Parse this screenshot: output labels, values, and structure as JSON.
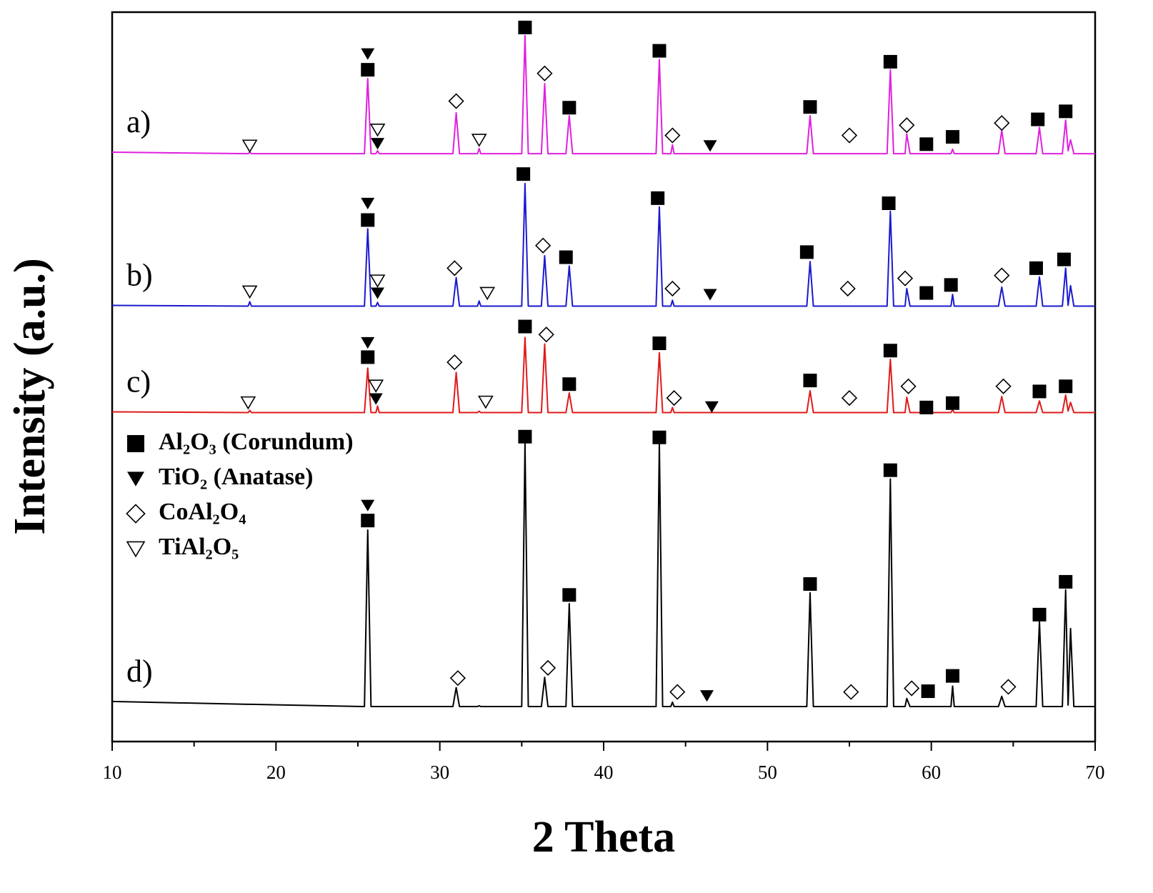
{
  "chart_data": {
    "type": "line",
    "x_label": "2 Theta",
    "y_label": "Intensity (a.u.)",
    "xlim": [
      10,
      70
    ],
    "xticks": [
      10,
      20,
      30,
      40,
      50,
      60,
      70
    ],
    "xminorticks": [
      15,
      25,
      35,
      45,
      55,
      65
    ],
    "ylim": [
      0,
      100
    ],
    "x": [
      10,
      18.3,
      18.4,
      18.5,
      25.4,
      25.6,
      25.8,
      26.1,
      26.2,
      26.3,
      30.8,
      31.0,
      31.2,
      32.3,
      32.4,
      32.5,
      35.0,
      35.2,
      35.4,
      36.2,
      36.4,
      36.6,
      37.7,
      37.9,
      38.1,
      43.2,
      43.4,
      43.6,
      44.1,
      44.2,
      44.3,
      52.4,
      52.6,
      52.8,
      57.3,
      57.5,
      57.7,
      58.4,
      58.5,
      58.7,
      61.2,
      61.3,
      61.4,
      64.1,
      64.3,
      64.5,
      66.4,
      66.6,
      66.8,
      68.0,
      68.2,
      68.35,
      68.5,
      68.7,
      70
    ],
    "legend": [
      {
        "label": "Al₂O₃ (Corundum)",
        "symbol": "square"
      },
      {
        "label": "TiO₂ (Anatase)",
        "symbol": "triangle-down"
      },
      {
        "label": "CoAl₂O₄",
        "symbol": "diamond"
      },
      {
        "label": "TiAl₂O₅",
        "symbol": "triangle-down-open"
      }
    ],
    "series": [
      {
        "name": "a)",
        "color": "#e020e0",
        "values": [
          80.8,
          80.6,
          80.8,
          80.6,
          80.6,
          90.9,
          80.6,
          80.6,
          81.0,
          80.6,
          80.6,
          86.2,
          80.6,
          80.6,
          81.3,
          80.6,
          80.6,
          96.8,
          80.6,
          80.6,
          90.2,
          80.6,
          80.6,
          85.8,
          80.6,
          80.6,
          93.5,
          80.6,
          80.6,
          81.8,
          80.6,
          80.6,
          85.8,
          80.6,
          80.6,
          92.1,
          80.6,
          80.6,
          83.3,
          80.6,
          80.6,
          81.2,
          80.6,
          80.6,
          83.8,
          80.6,
          80.6,
          84.2,
          80.6,
          80.6,
          85.2,
          81.0,
          82.5,
          80.6,
          80.6
        ],
        "markers": [
          {
            "symbol": "triangle-down",
            "x": 25.6,
            "y": 94.3
          },
          {
            "symbol": "square",
            "x": 25.6,
            "y": 92.1
          },
          {
            "symbol": "triangle-down-open",
            "x": 18.4,
            "y": 81.7
          },
          {
            "symbol": "triangle-down-open",
            "x": 26.2,
            "y": 83.9
          },
          {
            "symbol": "triangle-down",
            "x": 26.2,
            "y": 82.0
          },
          {
            "symbol": "diamond",
            "x": 31.0,
            "y": 87.8
          },
          {
            "symbol": "triangle-down-open",
            "x": 32.4,
            "y": 82.5
          },
          {
            "symbol": "square",
            "x": 35.2,
            "y": 97.9
          },
          {
            "symbol": "diamond",
            "x": 36.4,
            "y": 91.6
          },
          {
            "symbol": "square",
            "x": 37.9,
            "y": 86.9
          },
          {
            "symbol": "square",
            "x": 43.4,
            "y": 94.7
          },
          {
            "symbol": "diamond",
            "x": 44.2,
            "y": 83.1
          },
          {
            "symbol": "triangle-down",
            "x": 46.5,
            "y": 81.7
          },
          {
            "symbol": "square",
            "x": 52.6,
            "y": 87.0
          },
          {
            "symbol": "diamond",
            "x": 55.0,
            "y": 83.1
          },
          {
            "symbol": "square",
            "x": 57.5,
            "y": 93.2
          },
          {
            "symbol": "diamond",
            "x": 58.5,
            "y": 84.5
          },
          {
            "symbol": "square",
            "x": 59.7,
            "y": 81.9
          },
          {
            "symbol": "square",
            "x": 61.3,
            "y": 82.9
          },
          {
            "symbol": "diamond",
            "x": 64.3,
            "y": 84.8
          },
          {
            "symbol": "square",
            "x": 66.5,
            "y": 85.3
          },
          {
            "symbol": "square",
            "x": 68.2,
            "y": 86.4
          }
        ]
      },
      {
        "name": "b)",
        "color": "#1a1ad0",
        "values": [
          59.8,
          59.7,
          60.3,
          59.7,
          59.7,
          70.3,
          59.7,
          59.7,
          60.2,
          59.7,
          59.7,
          63.6,
          59.7,
          59.7,
          60.4,
          59.7,
          59.7,
          76.5,
          59.7,
          59.7,
          66.6,
          59.7,
          59.7,
          65.2,
          59.7,
          59.7,
          73.3,
          59.7,
          59.7,
          60.5,
          59.7,
          59.7,
          65.8,
          59.7,
          59.7,
          72.7,
          59.7,
          59.7,
          62.1,
          59.7,
          59.7,
          61.3,
          59.7,
          59.7,
          62.3,
          59.7,
          59.7,
          63.7,
          59.7,
          59.7,
          64.9,
          59.8,
          62.5,
          59.7,
          59.7
        ],
        "markers": [
          {
            "symbol": "triangle-down",
            "x": 25.6,
            "y": 73.8
          },
          {
            "symbol": "square",
            "x": 25.6,
            "y": 71.5
          },
          {
            "symbol": "triangle-down-open",
            "x": 18.4,
            "y": 61.7
          },
          {
            "symbol": "triangle-down-open",
            "x": 26.2,
            "y": 63.2
          },
          {
            "symbol": "triangle-down",
            "x": 26.2,
            "y": 61.5
          },
          {
            "symbol": "diamond",
            "x": 30.9,
            "y": 64.9
          },
          {
            "symbol": "triangle-down-open",
            "x": 32.9,
            "y": 61.5
          },
          {
            "symbol": "square",
            "x": 35.1,
            "y": 77.8
          },
          {
            "symbol": "diamond",
            "x": 36.3,
            "y": 68.0
          },
          {
            "symbol": "square",
            "x": 37.7,
            "y": 66.4
          },
          {
            "symbol": "square",
            "x": 43.3,
            "y": 74.5
          },
          {
            "symbol": "diamond",
            "x": 44.2,
            "y": 62.1
          },
          {
            "symbol": "triangle-down",
            "x": 46.5,
            "y": 61.3
          },
          {
            "symbol": "square",
            "x": 52.4,
            "y": 67.1
          },
          {
            "symbol": "diamond",
            "x": 54.9,
            "y": 62.1
          },
          {
            "symbol": "square",
            "x": 57.4,
            "y": 73.8
          },
          {
            "symbol": "diamond",
            "x": 58.4,
            "y": 63.5
          },
          {
            "symbol": "square",
            "x": 59.7,
            "y": 61.5
          },
          {
            "symbol": "square",
            "x": 61.2,
            "y": 62.6
          },
          {
            "symbol": "diamond",
            "x": 64.3,
            "y": 63.9
          },
          {
            "symbol": "square",
            "x": 66.4,
            "y": 64.9
          },
          {
            "symbol": "square",
            "x": 68.1,
            "y": 66.1
          }
        ]
      },
      {
        "name": "c)",
        "color": "#e01a1a",
        "values": [
          45.2,
          45.1,
          45.4,
          45.1,
          45.1,
          51.2,
          45.1,
          45.1,
          46.0,
          45.1,
          45.1,
          50.6,
          45.1,
          45.1,
          45.3,
          45.1,
          45.1,
          55.4,
          45.1,
          45.1,
          54.5,
          45.1,
          45.1,
          47.8,
          45.1,
          45.1,
          53.3,
          45.1,
          45.1,
          45.8,
          45.1,
          45.1,
          48.1,
          45.1,
          45.1,
          52.4,
          45.1,
          45.1,
          47.2,
          45.1,
          45.1,
          45.5,
          45.1,
          45.1,
          47.3,
          45.1,
          45.1,
          46.7,
          45.1,
          45.1,
          47.5,
          45.3,
          46.5,
          45.1,
          45.1
        ],
        "markers": [
          {
            "symbol": "triangle-down",
            "x": 25.6,
            "y": 54.7
          },
          {
            "symbol": "square",
            "x": 25.6,
            "y": 52.7
          },
          {
            "symbol": "triangle-down-open",
            "x": 18.3,
            "y": 46.5
          },
          {
            "symbol": "triangle-down-open",
            "x": 26.1,
            "y": 48.8
          },
          {
            "symbol": "triangle-down",
            "x": 26.1,
            "y": 47.0
          },
          {
            "symbol": "diamond",
            "x": 30.9,
            "y": 52.0
          },
          {
            "symbol": "triangle-down-open",
            "x": 32.8,
            "y": 46.6
          },
          {
            "symbol": "square",
            "x": 35.2,
            "y": 56.9
          },
          {
            "symbol": "diamond",
            "x": 36.5,
            "y": 55.8
          },
          {
            "symbol": "square",
            "x": 37.9,
            "y": 49.0
          },
          {
            "symbol": "square",
            "x": 43.4,
            "y": 54.6
          },
          {
            "symbol": "diamond",
            "x": 44.3,
            "y": 47.1
          },
          {
            "symbol": "triangle-down",
            "x": 46.6,
            "y": 45.9
          },
          {
            "symbol": "square",
            "x": 52.6,
            "y": 49.5
          },
          {
            "symbol": "diamond",
            "x": 55.0,
            "y": 47.1
          },
          {
            "symbol": "square",
            "x": 57.5,
            "y": 53.6
          },
          {
            "symbol": "diamond",
            "x": 58.6,
            "y": 48.7
          },
          {
            "symbol": "square",
            "x": 59.7,
            "y": 45.8
          },
          {
            "symbol": "square",
            "x": 61.3,
            "y": 46.4
          },
          {
            "symbol": "diamond",
            "x": 64.4,
            "y": 48.7
          },
          {
            "symbol": "square",
            "x": 66.6,
            "y": 48.0
          },
          {
            "symbol": "square",
            "x": 68.2,
            "y": 48.7
          }
        ]
      },
      {
        "name": "d)",
        "color": "#000000",
        "values": [
          5.5,
          5.1,
          5.1,
          5.1,
          4.8,
          29.0,
          4.8,
          4.8,
          4.8,
          4.8,
          4.8,
          7.4,
          4.8,
          4.8,
          4.9,
          4.8,
          4.8,
          40.9,
          4.8,
          4.8,
          8.8,
          4.8,
          4.8,
          18.9,
          4.8,
          4.8,
          40.9,
          4.8,
          4.8,
          5.4,
          4.8,
          4.8,
          20.4,
          4.8,
          4.8,
          36.0,
          4.8,
          4.8,
          5.9,
          4.8,
          4.8,
          7.6,
          4.8,
          4.8,
          6.2,
          4.8,
          4.8,
          16.5,
          4.8,
          4.8,
          20.8,
          5.0,
          15.5,
          4.8,
          4.8
        ],
        "markers": [
          {
            "symbol": "triangle-down",
            "x": 25.6,
            "y": 32.4
          },
          {
            "symbol": "square",
            "x": 25.6,
            "y": 30.3
          },
          {
            "symbol": "diamond",
            "x": 31.1,
            "y": 8.7
          },
          {
            "symbol": "square",
            "x": 35.2,
            "y": 41.8
          },
          {
            "symbol": "diamond",
            "x": 36.6,
            "y": 10.1
          },
          {
            "symbol": "square",
            "x": 37.9,
            "y": 20.1
          },
          {
            "symbol": "square",
            "x": 43.4,
            "y": 41.7
          },
          {
            "symbol": "diamond",
            "x": 44.5,
            "y": 6.8
          },
          {
            "symbol": "triangle-down",
            "x": 46.3,
            "y": 6.3
          },
          {
            "symbol": "square",
            "x": 52.6,
            "y": 21.6
          },
          {
            "symbol": "diamond",
            "x": 55.1,
            "y": 6.8
          },
          {
            "symbol": "square",
            "x": 57.5,
            "y": 37.2
          },
          {
            "symbol": "diamond",
            "x": 58.8,
            "y": 7.3
          },
          {
            "symbol": "square",
            "x": 59.8,
            "y": 6.9
          },
          {
            "symbol": "square",
            "x": 61.3,
            "y": 9.0
          },
          {
            "symbol": "diamond",
            "x": 64.7,
            "y": 7.5
          },
          {
            "symbol": "square",
            "x": 66.6,
            "y": 17.4
          },
          {
            "symbol": "square",
            "x": 68.2,
            "y": 21.9
          }
        ]
      }
    ]
  }
}
